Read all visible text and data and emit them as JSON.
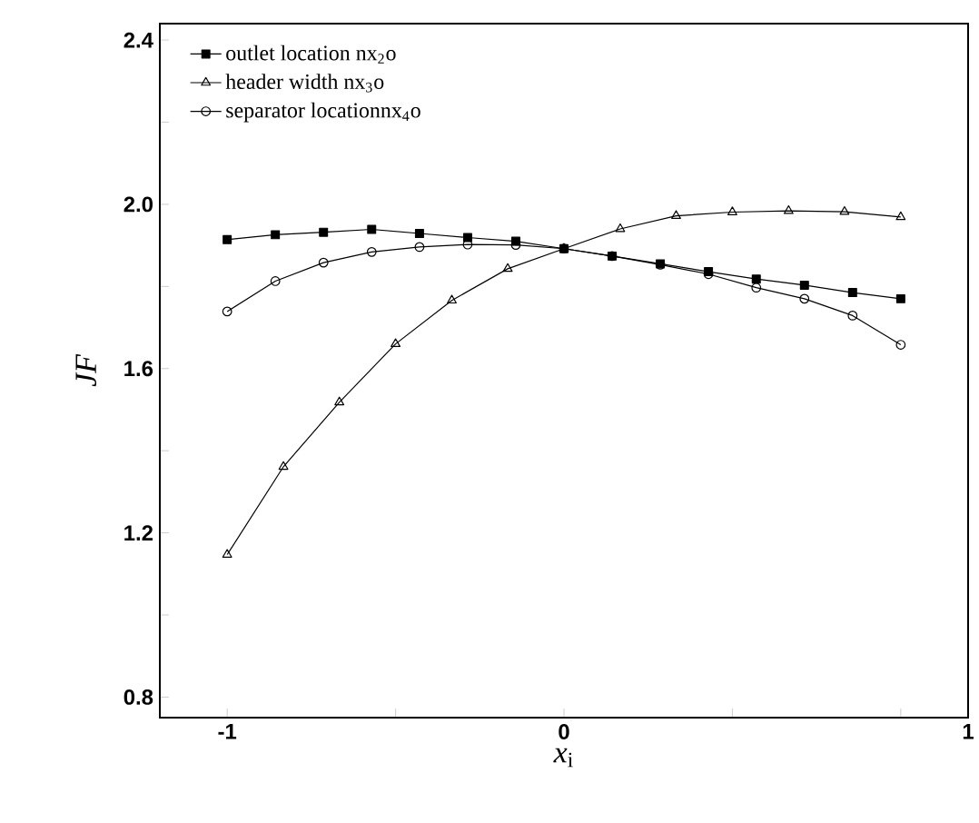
{
  "chart_data": {
    "type": "line",
    "xlabel": "*x*$_{i}$",
    "ylabel": "JF",
    "xlim": [
      -1.2,
      1.2
    ],
    "ylim": [
      0.75,
      2.44
    ],
    "xticks": [
      -1,
      {
        "value": -0.5,
        "label": null
      },
      0,
      {
        "value": 0.5,
        "label": null
      },
      {
        "value": 1,
        "label": null
      },
      {
        "value": 1.2,
        "label": "1"
      }
    ],
    "yticks": [
      0.8,
      {
        "value": 1.0,
        "label": null
      },
      1.2,
      {
        "value": 1.4,
        "label": null
      },
      1.6,
      {
        "value": 1.8,
        "label": null
      },
      {
        "value": 2.0,
        "label": "2.0"
      },
      {
        "value": 2.2,
        "label": null
      },
      2.4
    ],
    "legend": "top left",
    "grid": false,
    "series": [
      {
        "name": "outlet location nx$_{2}$o",
        "color": "#000000",
        "marker": "square",
        "x": [
          -1,
          -0.857,
          -0.714,
          -0.571,
          -0.429,
          -0.286,
          -0.143,
          0,
          0.143,
          0.286,
          0.429,
          0.571,
          0.714,
          0.857,
          1
        ],
        "values": [
          1.914,
          1.926,
          1.932,
          1.939,
          1.929,
          1.919,
          1.91,
          1.892,
          1.874,
          1.855,
          1.836,
          1.818,
          1.803,
          1.785,
          1.77
        ]
      },
      {
        "name": "header width nx$_{3}$o",
        "color": "#000000",
        "marker": "triangle",
        "x": [
          -1,
          -0.833,
          -0.667,
          -0.5,
          -0.333,
          -0.167,
          0,
          0.167,
          0.333,
          0.5,
          0.667,
          0.833,
          1
        ],
        "values": [
          1.147,
          1.361,
          1.518,
          1.66,
          1.766,
          1.843,
          1.892,
          1.94,
          1.972,
          1.981,
          1.984,
          1.982,
          1.969
        ]
      },
      {
        "name": "separator locationnx$_{4}$o",
        "color": "#000000",
        "marker": "circle",
        "x": [
          -1,
          -0.857,
          -0.714,
          -0.571,
          -0.429,
          -0.286,
          -0.143,
          0,
          0.143,
          0.286,
          0.429,
          0.571,
          0.714,
          0.857,
          1
        ],
        "values": [
          1.739,
          1.813,
          1.858,
          1.884,
          1.896,
          1.902,
          1.901,
          1.892,
          1.874,
          1.853,
          1.83,
          1.797,
          1.77,
          1.729,
          1.658
        ]
      }
    ]
  }
}
